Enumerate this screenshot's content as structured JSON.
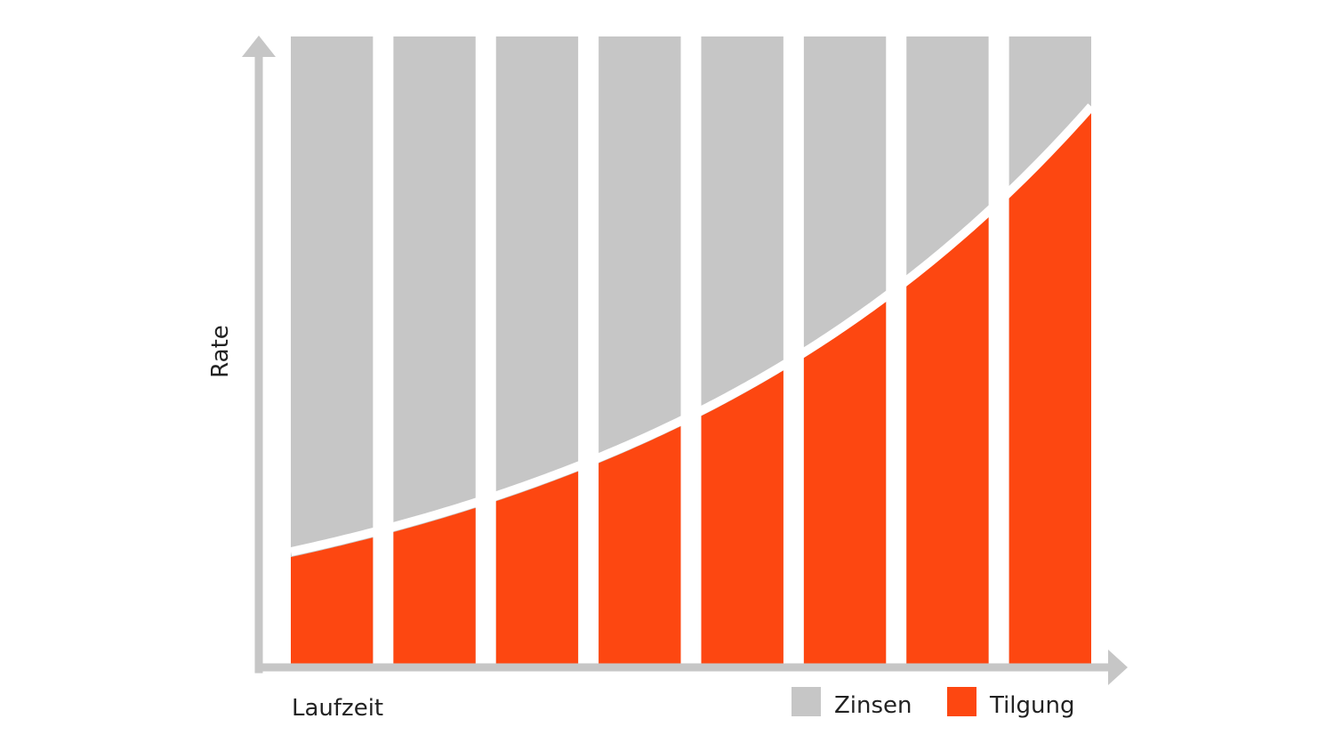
{
  "chart_data": {
    "type": "bar",
    "stacked": true,
    "xlabel": "Laufzeit",
    "ylabel": "Rate",
    "axis_ticks": false,
    "grid": false,
    "legend_position": "bottom-right",
    "ylim": [
      0,
      100
    ],
    "total_value": 100,
    "series": [
      {
        "name": "Zinsen",
        "color": "#c6c6c6",
        "edge": "top"
      },
      {
        "name": "Tilgung",
        "color": "#fd4711",
        "edge": "curve"
      }
    ],
    "tilgung_share_at_start": 17,
    "tilgung_share_at_end": 88,
    "num_periods": 8,
    "separator_color": "#ffffff",
    "axis_color": "#c6c6c6"
  }
}
